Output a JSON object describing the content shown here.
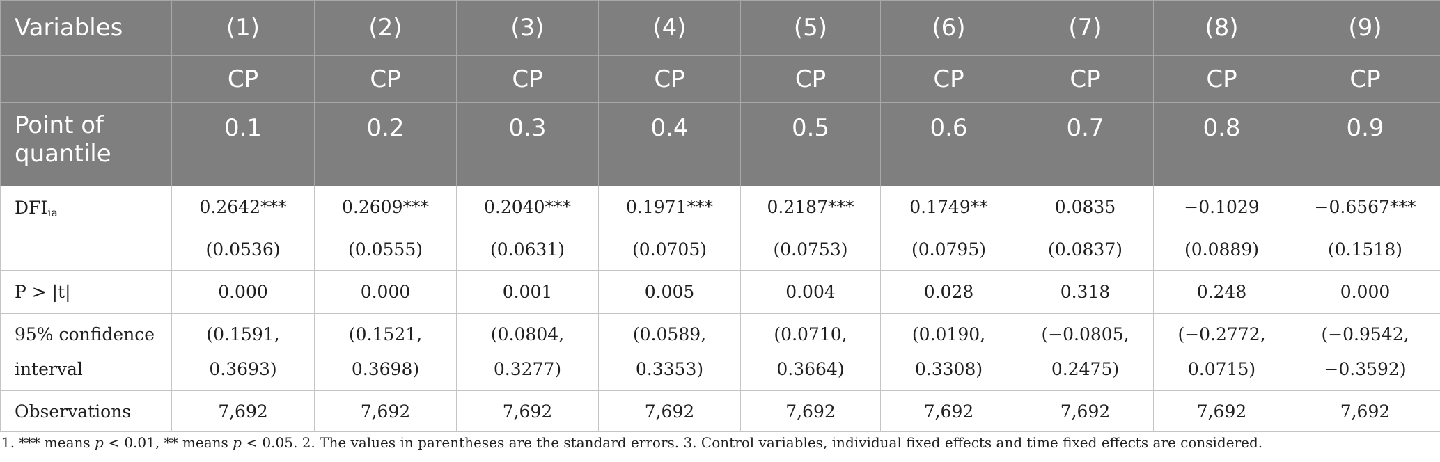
{
  "header": {
    "variables_label": "Variables",
    "columns": [
      "(1)",
      "(2)",
      "(3)",
      "(4)",
      "(5)",
      "(6)",
      "(7)",
      "(8)",
      "(9)"
    ],
    "dep_var": [
      "CP",
      "CP",
      "CP",
      "CP",
      "CP",
      "CP",
      "CP",
      "CP",
      "CP"
    ],
    "quantile_label_line1": "Point of",
    "quantile_label_line2": "quantile",
    "quantiles": [
      "0.1",
      "0.2",
      "0.3",
      "0.4",
      "0.5",
      "0.6",
      "0.7",
      "0.8",
      "0.9"
    ]
  },
  "rows": {
    "dfi": {
      "label": "DFI",
      "label_sub": "ia",
      "coefficients": [
        "0.2642***",
        "0.2609***",
        "0.2040***",
        "0.1971***",
        "0.2187***",
        "0.1749**",
        "0.0835",
        "−0.1029",
        "−0.6567***"
      ],
      "std_errors": [
        "(0.0536)",
        "(0.0555)",
        "(0.0631)",
        "(0.0705)",
        "(0.0753)",
        "(0.0795)",
        "(0.0837)",
        "(0.0889)",
        "(0.1518)"
      ]
    },
    "p_value": {
      "label": "P > |t|",
      "values": [
        "0.000",
        "0.000",
        "0.001",
        "0.005",
        "0.004",
        "0.028",
        "0.318",
        "0.248",
        "0.000"
      ]
    },
    "confidence": {
      "label_line1": "95% confidence",
      "label_line2": "interval",
      "lower": [
        "(0.1591,",
        "(0.1521,",
        "(0.0804,",
        "(0.0589,",
        "(0.0710,",
        "(0.0190,",
        "(−0.0805,",
        "(−0.2772,",
        "(−0.9542,"
      ],
      "upper": [
        "0.3693)",
        "0.3698)",
        "0.3277)",
        "0.3353)",
        "0.3664)",
        "0.3308)",
        "0.2475)",
        "0.0715)",
        "−0.3592)"
      ]
    },
    "observations": {
      "label": "Observations",
      "values": [
        "7,692",
        "7,692",
        "7,692",
        "7,692",
        "7,692",
        "7,692",
        "7,692",
        "7,692",
        "7,692"
      ]
    }
  },
  "footnote": {
    "part1": "1. *** means ",
    "p1": "p",
    "part2": " < 0.01, ** means ",
    "p2": "p",
    "part3": " < 0.05. 2. The values in parentheses are the standard errors. 3. Control variables, individual fixed effects and time fixed effects are considered."
  },
  "colors": {
    "header_bg": "#7f7f7f",
    "header_text": "#ffffff",
    "grid": "#c4c4c4",
    "body_text": "#1f1f1f"
  }
}
